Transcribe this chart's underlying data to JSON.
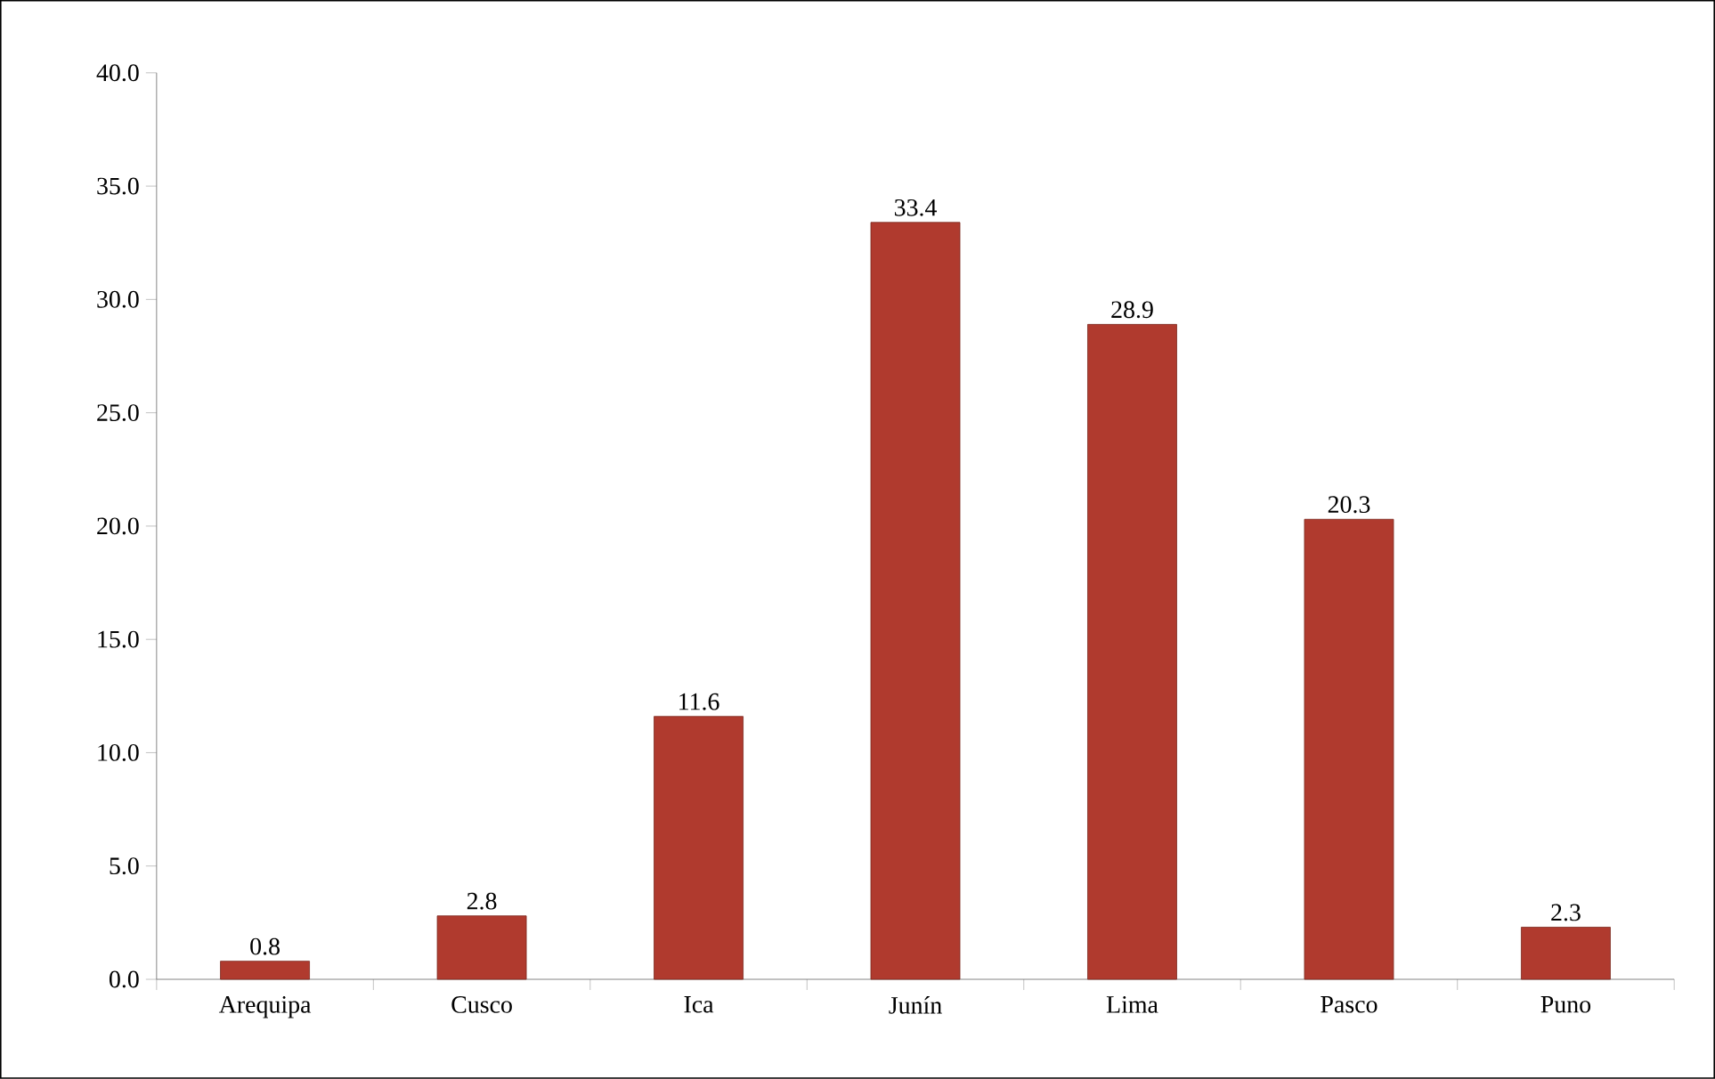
{
  "chart_data": {
    "type": "bar",
    "categories": [
      "Arequipa",
      "Cusco",
      "Ica",
      "Junín",
      "Lima",
      "Pasco",
      "Puno"
    ],
    "values": [
      0.8,
      2.8,
      11.6,
      33.4,
      28.9,
      20.3,
      2.3
    ],
    "color": "#b03a2e",
    "ylim": [
      0,
      40
    ],
    "yticks": [
      {
        "value": 0,
        "label": "0.0"
      },
      {
        "value": 5,
        "label": "5.0"
      },
      {
        "value": 10,
        "label": "10.0"
      },
      {
        "value": 15,
        "label": "15.0"
      },
      {
        "value": 20,
        "label": "20.0"
      },
      {
        "value": 25,
        "label": "25.0"
      },
      {
        "value": 30,
        "label": "30.0"
      },
      {
        "value": 35,
        "label": "35.0"
      },
      {
        "value": 40,
        "label": "40.0"
      }
    ],
    "data_labels": true
  }
}
